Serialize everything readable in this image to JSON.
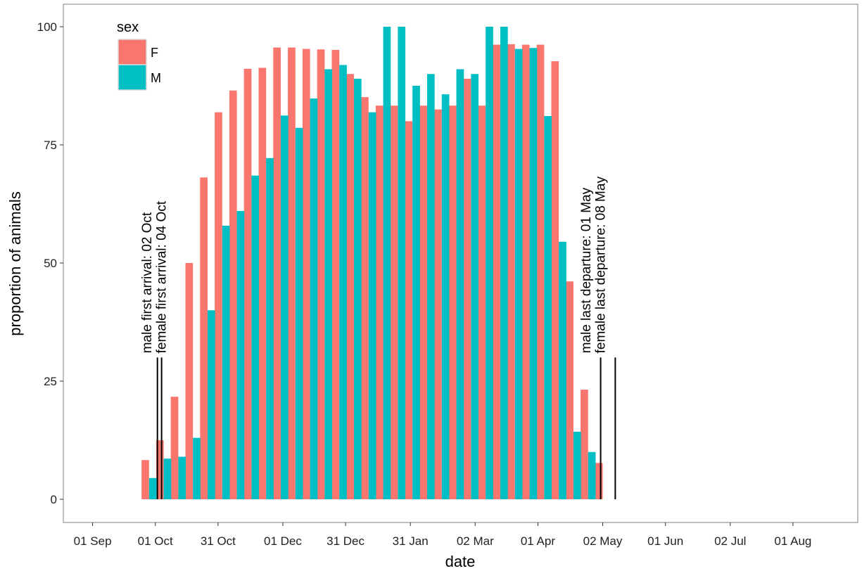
{
  "chart_data": {
    "type": "bar",
    "title": "",
    "xlabel": "date",
    "ylabel": "proportion of animals",
    "ylim": [
      0,
      100
    ],
    "yticks": [
      0,
      25,
      50,
      75,
      100
    ],
    "xlim": [
      "2015-08-18",
      "2016-09-01"
    ],
    "x_tick_labels": [
      {
        "date": "2015-09-01",
        "label": "01 Sep"
      },
      {
        "date": "2015-10-01",
        "label": "01 Oct"
      },
      {
        "date": "2015-10-31",
        "label": "31 Oct"
      },
      {
        "date": "2015-12-01",
        "label": "01 Dec"
      },
      {
        "date": "2015-12-31",
        "label": "31 Dec"
      },
      {
        "date": "2016-01-31",
        "label": "31 Jan"
      },
      {
        "date": "2016-03-02",
        "label": "02 Mar"
      },
      {
        "date": "2016-04-01",
        "label": "01 Apr"
      },
      {
        "date": "2016-05-02",
        "label": "02 May"
      },
      {
        "date": "2016-06-01",
        "label": "01 Jun"
      },
      {
        "date": "2016-07-02",
        "label": "02 Jul"
      },
      {
        "date": "2016-08-01",
        "label": "01 Aug"
      }
    ],
    "legend": {
      "title": "sex",
      "position": "top-left"
    },
    "grid": false,
    "bar_width_days": 3.6,
    "series": [
      {
        "name": "F",
        "color": "#F8766D",
        "dates": [
          "2015-09-28",
          "2015-10-05",
          "2015-10-12",
          "2015-10-19",
          "2015-10-26",
          "2015-11-02",
          "2015-11-09",
          "2015-11-16",
          "2015-11-23",
          "2015-11-30",
          "2015-12-07",
          "2015-12-14",
          "2015-12-21",
          "2015-12-28",
          "2016-01-04",
          "2016-01-11",
          "2016-01-18",
          "2016-01-25",
          "2016-02-01",
          "2016-02-08",
          "2016-02-15",
          "2016-02-22",
          "2016-02-29",
          "2016-03-07",
          "2016-03-14",
          "2016-03-21",
          "2016-03-28",
          "2016-04-04",
          "2016-04-11",
          "2016-04-18",
          "2016-04-25",
          "2016-05-02"
        ],
        "values": [
          8.3,
          12.5,
          21.7,
          50,
          68.1,
          81.9,
          86.5,
          91.1,
          91.3,
          95.6,
          95.6,
          95.3,
          95.2,
          95.1,
          90,
          85.1,
          83.3,
          83.3,
          80,
          83.3,
          82.5,
          83.3,
          89,
          83.3,
          96.2,
          96.3,
          96.2,
          96.2,
          92.7,
          46.1,
          23.2,
          7.7
        ]
      },
      {
        "name": "M",
        "color": "#00BFC4",
        "dates": [
          "2015-09-28",
          "2015-10-05",
          "2015-10-12",
          "2015-10-19",
          "2015-10-26",
          "2015-11-02",
          "2015-11-09",
          "2015-11-16",
          "2015-11-23",
          "2015-11-30",
          "2015-12-07",
          "2015-12-14",
          "2015-12-21",
          "2015-12-28",
          "2016-01-04",
          "2016-01-11",
          "2016-01-18",
          "2016-01-25",
          "2016-02-01",
          "2016-02-08",
          "2016-02-15",
          "2016-02-22",
          "2016-02-29",
          "2016-03-07",
          "2016-03-14",
          "2016-03-21",
          "2016-03-28",
          "2016-04-04",
          "2016-04-11",
          "2016-04-18",
          "2016-04-25"
        ],
        "values": [
          4.5,
          8.6,
          9,
          13,
          40,
          57.9,
          61,
          68.5,
          72.2,
          81.2,
          78.6,
          84.8,
          91,
          91.9,
          89,
          81.9,
          100,
          100,
          87.5,
          90,
          85.7,
          91,
          90,
          100,
          100,
          95.3,
          95.5,
          81.1,
          54.5,
          14.3,
          10
        ]
      }
    ],
    "annotations": [
      {
        "label": "male first arrival: 02 Oct",
        "date": "2015-10-02",
        "line_top": 30,
        "text_x_date": "2015-09-27"
      },
      {
        "label": "female first arrival: 04 Oct",
        "date": "2015-10-04",
        "line_top": 30,
        "text_x_date": "2015-10-04"
      },
      {
        "label": "male last departure: 01 May",
        "date": "2016-05-01",
        "line_top": 30,
        "text_x_date": "2016-04-24"
      },
      {
        "label": "female last departure: 08 May",
        "date": "2016-05-08",
        "line_top": 30,
        "text_x_date": "2016-05-01"
      }
    ]
  }
}
